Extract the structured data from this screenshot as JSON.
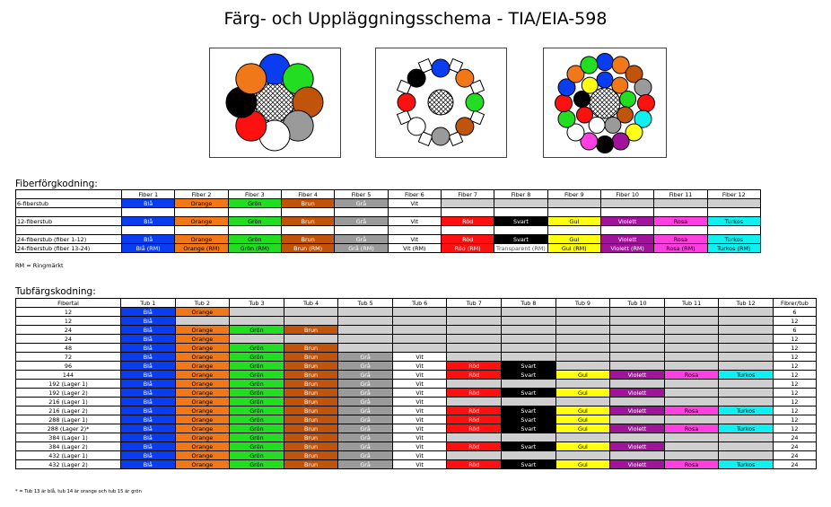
{
  "title": "Färg- och Uppläggningsschema - TIA/EIA-598",
  "colors": {
    "Blå": "#0a3cf0",
    "Orange": "#f07818",
    "Grön": "#22dd22",
    "Brun": "#c0540a",
    "Grå": "#9a9a9a",
    "Vit": "#ffffff",
    "Röd": "#ff1010",
    "Svart": "#000000",
    "Gul": "#ffff10",
    "Violett": "#a0149c",
    "Rosa": "#ff40e0",
    "Turkos": "#10f0f0",
    "empty": "#cfcfcf",
    "rm_text": {
      "Blå": "#ffffff",
      "Orange": "#000000",
      "Grön": "#000000",
      "Brun": "#ffffff",
      "Grå": "#ffffff",
      "Vit": "#000000",
      "Röd": "#ffffff",
      "Svart": "#ffffff",
      "Gul": "#000000",
      "Violett": "#ffffff",
      "Rosa": "#000000",
      "Turkos": "#000000"
    }
  },
  "fiber_section": {
    "title": "Fiberförgkodning:",
    "headers": [
      "",
      "Fiber 1",
      "Fiber 2",
      "Fiber 3",
      "Fiber 4",
      "Fiber 5",
      "Fiber 6",
      "Fiber 7",
      "Fiber 8",
      "Fiber 9",
      "Fiber 10",
      "Fiber 11",
      "Fiber 12"
    ],
    "rows": [
      {
        "label": "6-fiberstub",
        "cells": [
          "Blå",
          "Orange",
          "Grön",
          "Brun",
          "Grå",
          "Vit",
          "",
          "",
          "",
          "",
          "",
          ""
        ]
      },
      {
        "blank": true
      },
      {
        "label": "12-fiberstub",
        "cells": [
          "Blå",
          "Orange",
          "Grön",
          "Brun",
          "Grå",
          "Vit",
          "Röd",
          "Svart",
          "Gul",
          "Violett",
          "Rosa",
          "Turkos"
        ]
      },
      {
        "blank": true
      },
      {
        "label": "24-fiberstub (fiber 1-12)",
        "cells": [
          "Blå",
          "Orange",
          "Grön",
          "Brun",
          "Grå",
          "Vit",
          "Röd",
          "Svart",
          "Gul",
          "Violett",
          "Rosa",
          "Turkos"
        ]
      },
      {
        "label": "24-fiberstub (fiber 13-24)",
        "cells": [
          "Blå (RM)",
          "Orange (RM)",
          "Grön (RM)",
          "Brun (RM)",
          "Grå (RM)",
          "Vit (RM)",
          "Röd (RM)",
          "Transparent (RM)",
          "Gul (RM)",
          "Violett (RM)",
          "Rosa (RM)",
          "Turkos (RM)"
        ]
      }
    ],
    "note": "RM = Ringmärkt"
  },
  "tube_section": {
    "title": "Tubfärgskodning:",
    "headers": [
      "Fibertal",
      "Tub 1",
      "Tub 2",
      "Tub 3",
      "Tub 4",
      "Tub 5",
      "Tub 6",
      "Tub 7",
      "Tub 8",
      "Tub 9",
      "Tub 10",
      "Tub 11",
      "Tub 12",
      "Fibrer/tub"
    ],
    "rows": [
      {
        "label": "12",
        "n": 2,
        "last": "6"
      },
      {
        "label": "12",
        "n": 1,
        "last": "12"
      },
      {
        "label": "24",
        "n": 4,
        "last": "6"
      },
      {
        "label": "24",
        "n": 2,
        "last": "12"
      },
      {
        "label": "48",
        "n": 4,
        "last": "12"
      },
      {
        "label": "72",
        "n": 6,
        "last": "12"
      },
      {
        "label": "96",
        "n": 8,
        "last": "12"
      },
      {
        "label": "144",
        "n": 12,
        "last": "12"
      },
      {
        "label": "192 (Lager 1)",
        "n": 6,
        "last": "12"
      },
      {
        "label": "192 (Lager 2)",
        "n": 10,
        "last": "12"
      },
      {
        "label": "216 (Lager 1)",
        "n": 6,
        "last": "12"
      },
      {
        "label": "216 (Lager 2)",
        "n": 12,
        "last": "12"
      },
      {
        "label": "288 (Lager 1)",
        "n": 9,
        "last": "12"
      },
      {
        "label": "288 (Lager 2)*",
        "n": 12,
        "last": "12"
      },
      {
        "label": "384 (Lager 1)",
        "n": 6,
        "last": "24"
      },
      {
        "label": "384 (Lager 2)",
        "n": 10,
        "last": "24"
      },
      {
        "label": "432 (Lager 1)",
        "n": 6,
        "last": "24"
      },
      {
        "label": "432 (Lager 2)",
        "n": 12,
        "last": "24"
      }
    ],
    "sequence": [
      "Blå",
      "Orange",
      "Grön",
      "Brun",
      "Grå",
      "Vit",
      "Röd",
      "Svart",
      "Gul",
      "Violett",
      "Rosa",
      "Turkos"
    ],
    "note": "* = Tub 13 är blå, tub 14 är orange och tub 15 är grön"
  },
  "diagrams": {
    "d1": [
      "Blå",
      "Grön",
      "Brun",
      "Grå",
      "Vit",
      "Röd",
      "Svart",
      "Orange"
    ],
    "d2": [
      "Blå",
      "Orange",
      "Grön",
      "Brun",
      "Grå",
      "Vit",
      "Röd",
      "Svart"
    ],
    "d3_outer": [
      "Blå",
      "Orange",
      "Brun",
      "Grå",
      "Röd",
      "Turkos",
      "Gul",
      "Violett",
      "Svart",
      "Rosa",
      "Vit",
      "Grön",
      "Röd",
      "Blå",
      "Orange",
      "Grön"
    ],
    "d3_inner": [
      "Blå",
      "Orange",
      "Grön",
      "Brun",
      "Grå",
      "Vit",
      "Röd",
      "Svart",
      "Gul"
    ]
  }
}
